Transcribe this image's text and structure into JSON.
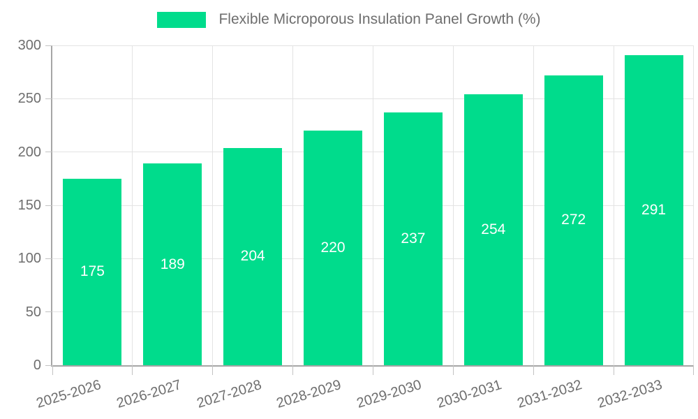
{
  "chart_data": {
    "type": "bar",
    "title": "",
    "legend": {
      "label": "Flexible Microporous Insulation Panel Growth (%)",
      "position": "top",
      "marker": "rectangle"
    },
    "categories": [
      "2025-2026",
      "2026-2027",
      "2027-2028",
      "2028-2029",
      "2029-2030",
      "2030-2031",
      "2031-2032",
      "2032-2033"
    ],
    "values": [
      175,
      189,
      204,
      220,
      237,
      254,
      272,
      291
    ],
    "value_labels_shown": true,
    "xlabel": "",
    "ylabel": "",
    "ylim": [
      0,
      300
    ],
    "yticks": [
      0,
      50,
      100,
      150,
      200,
      250,
      300
    ],
    "grid": true,
    "x_label_rotation_deg": -17,
    "colors": {
      "bar": "#00DC8C",
      "axis": "#a6a6a6",
      "tick": "#c2c2c2",
      "grid": "#e3e3e3",
      "label_text": "#6e6e6e",
      "value_text": "#ffffff",
      "background": "#ffffff"
    }
  }
}
